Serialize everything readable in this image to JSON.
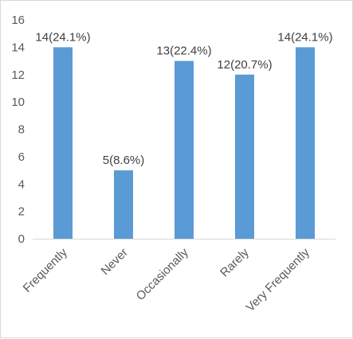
{
  "chart_data": {
    "type": "bar",
    "categories": [
      "Frequently",
      "Never",
      "Occasionally",
      "Rarely",
      "Very Frequently"
    ],
    "values": [
      14,
      5,
      13,
      12,
      14
    ],
    "data_labels": [
      "14(24.1%)",
      "5(8.6%)",
      "13(22.4%)",
      "12(20.7%)",
      "14(24.1%)"
    ],
    "yticks": [
      "0",
      "2",
      "4",
      "6",
      "8",
      "10",
      "12",
      "14",
      "16"
    ],
    "ylim": [
      0,
      16
    ],
    "title": "",
    "xlabel": "",
    "ylabel": "",
    "grid": false,
    "legend": "none",
    "bar_color": "#5b9bd5",
    "axis_color": "#d9d9d9",
    "text_color": "#595959"
  }
}
